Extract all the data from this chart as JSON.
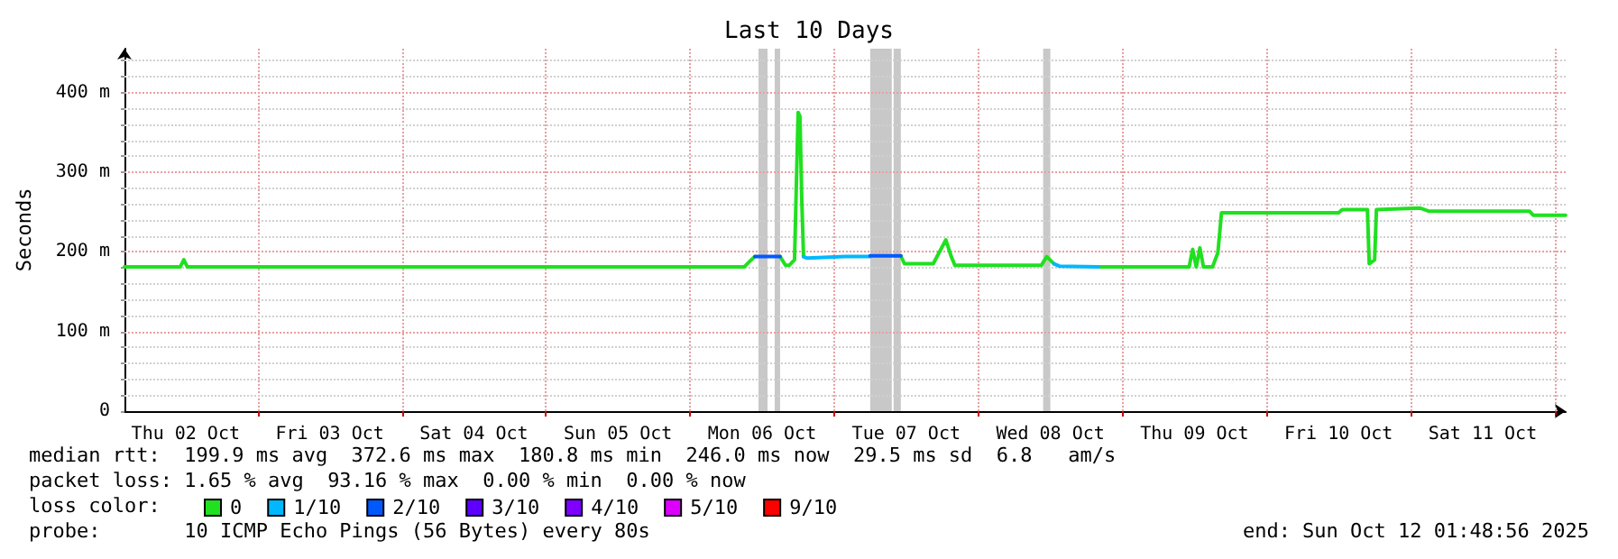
{
  "chart_data": {
    "type": "line",
    "title": "Last 10 Days",
    "ylabel": "Seconds",
    "xlim": [
      "2025-10-02T01:49",
      "2025-10-12T01:49"
    ],
    "xticks": [
      {
        "value": "2025-10-02T12:00",
        "label": "Thu 02 Oct"
      },
      {
        "value": "2025-10-03T00:00",
        "label": null
      },
      {
        "value": "2025-10-03T12:00",
        "label": "Fri 03 Oct"
      },
      {
        "value": "2025-10-04T00:00",
        "label": null
      },
      {
        "value": "2025-10-04T12:00",
        "label": "Sat 04 Oct"
      },
      {
        "value": "2025-10-05T00:00",
        "label": null
      },
      {
        "value": "2025-10-05T12:00",
        "label": "Sun 05 Oct"
      },
      {
        "value": "2025-10-06T00:00",
        "label": null
      },
      {
        "value": "2025-10-06T12:00",
        "label": "Mon 06 Oct"
      },
      {
        "value": "2025-10-07T00:00",
        "label": null
      },
      {
        "value": "2025-10-07T12:00",
        "label": "Tue 07 Oct"
      },
      {
        "value": "2025-10-08T00:00",
        "label": null
      },
      {
        "value": "2025-10-08T12:00",
        "label": "Wed 08 Oct"
      },
      {
        "value": "2025-10-09T00:00",
        "label": null
      },
      {
        "value": "2025-10-09T12:00",
        "label": "Thu 09 Oct"
      },
      {
        "value": "2025-10-10T00:00",
        "label": null
      },
      {
        "value": "2025-10-10T12:00",
        "label": "Fri 10 Oct"
      },
      {
        "value": "2025-10-11T00:00",
        "label": null
      },
      {
        "value": "2025-10-11T12:00",
        "label": "Sat 11 Oct"
      },
      {
        "value": "2025-10-12T00:00",
        "label": null
      }
    ],
    "ylim": [
      0,
      455
    ],
    "yticks": [
      {
        "value": 0,
        "label": "0"
      },
      {
        "value": 20,
        "label": null
      },
      {
        "value": 40,
        "label": null
      },
      {
        "value": 60,
        "label": null
      },
      {
        "value": 80,
        "label": null
      },
      {
        "value": 100,
        "label": "100 m"
      },
      {
        "value": 120,
        "label": null
      },
      {
        "value": 140,
        "label": null
      },
      {
        "value": 160,
        "label": null
      },
      {
        "value": 180,
        "label": null
      },
      {
        "value": 200,
        "label": "200 m"
      },
      {
        "value": 220,
        "label": null
      },
      {
        "value": 240,
        "label": null
      },
      {
        "value": 260,
        "label": null
      },
      {
        "value": 280,
        "label": null
      },
      {
        "value": 300,
        "label": "300 m"
      },
      {
        "value": 320,
        "label": null
      },
      {
        "value": 340,
        "label": null
      },
      {
        "value": 360,
        "label": null
      },
      {
        "value": 380,
        "label": null
      },
      {
        "value": 400,
        "label": "400 m"
      },
      {
        "value": 420,
        "label": null
      },
      {
        "value": 440,
        "label": null
      }
    ],
    "grid": true,
    "legend": "bottom left",
    "marker": "none",
    "line_style": "solid",
    "bands": [
      {
        "axis": "x",
        "from": "2025-10-06T11:24",
        "to": "2025-10-06T12:54",
        "color": "#c8c8c8"
      },
      {
        "axis": "x",
        "from": "2025-10-06T14:06",
        "to": "2025-10-06T15:00",
        "color": "#c8c8c8"
      },
      {
        "axis": "x",
        "from": "2025-10-07T06:00",
        "to": "2025-10-07T09:36",
        "color": "#c8c8c8"
      },
      {
        "axis": "x",
        "from": "2025-10-07T09:54",
        "to": "2025-10-07T11:06",
        "color": "#c8c8c8"
      },
      {
        "axis": "x",
        "from": "2025-10-08T10:48",
        "to": "2025-10-08T12:00",
        "color": "#c8c8c8"
      }
    ],
    "series": [
      {
        "name": "0",
        "color": "#20e020",
        "x": [
          "2025-10-02T01:49",
          "2025-10-02T11:06",
          "2025-10-02T11:42",
          "2025-10-02T12:18",
          "2025-10-06T09:00",
          "2025-10-06T10:12",
          "2025-10-06T10:48",
          "2025-10-06T12:00",
          "2025-10-06T15:00",
          "2025-10-06T15:54",
          "2025-10-06T16:30",
          "2025-10-06T17:24",
          "2025-10-06T18:00",
          "2025-10-06T18:18",
          "2025-10-06T18:36",
          "2025-10-06T18:54",
          "2025-10-06T21:00",
          "2025-10-07T11:06",
          "2025-10-07T11:42",
          "2025-10-07T16:30",
          "2025-10-07T18:36",
          "2025-10-07T19:30",
          "2025-10-07T20:06",
          "2025-10-08T10:30",
          "2025-10-08T11:24",
          "2025-10-08T12:36",
          "2025-10-08T16:00",
          "2025-10-08T20:00",
          "2025-10-09T06:00",
          "2025-10-09T11:06",
          "2025-10-09T11:42",
          "2025-10-09T12:18",
          "2025-10-09T12:54",
          "2025-10-09T13:30",
          "2025-10-09T15:00",
          "2025-10-09T15:54",
          "2025-10-09T16:30",
          "2025-10-10T12:00",
          "2025-10-10T12:36",
          "2025-10-10T16:48",
          "2025-10-10T17:06",
          "2025-10-10T18:00",
          "2025-10-10T18:18",
          "2025-10-11T01:30",
          "2025-10-11T03:00",
          "2025-10-11T19:48",
          "2025-10-11T20:24",
          "2025-10-12T01:48"
        ],
        "values": [
          181,
          181,
          190,
          181,
          181,
          190,
          194,
          null,
          194,
          183,
          183,
          190,
          375,
          370,
          267,
          194,
          null,
          195,
          185,
          185,
          215,
          194,
          183,
          183,
          194,
          185,
          null,
          181,
          181,
          181,
          203,
          181,
          205,
          181,
          181,
          199,
          249,
          249,
          253,
          253,
          185,
          190,
          253,
          255,
          251,
          251,
          246,
          246
        ]
      },
      {
        "name": "1/10",
        "color": "#00b8ff",
        "x": [
          "2025-10-06T18:54",
          "2025-10-06T19:30",
          "2025-10-07T01:48",
          "2025-10-07T06:00",
          "2025-10-07T06:30",
          "2025-10-08T12:36",
          "2025-10-08T13:30",
          "2025-10-08T20:00"
        ],
        "values": [
          194,
          192,
          194,
          194,
          null,
          185,
          182,
          181
        ]
      },
      {
        "name": "2/10",
        "color": "#0059ff",
        "x": [
          "2025-10-06T10:48",
          "2025-10-06T15:00"
        ],
        "values": [
          194,
          194
        ]
      },
      {
        "name": "3/10",
        "color": "#5e00ff"
      },
      {
        "name": "4/10",
        "color": "#7e00ff"
      },
      {
        "name": "5/10",
        "color": "#dd00ff"
      },
      {
        "name": "9/10",
        "color": "#ff0000"
      },
      {
        "color": "#0059ff",
        "x": [
          "2025-10-07T06:00",
          "2025-10-07T09:00",
          "2025-10-07T11:06"
        ],
        "values": [
          195,
          195,
          195
        ]
      }
    ],
    "annotations": [
      "median rtt:  199.9 ms avg  372.6 ms max  180.8 ms min  246.0 ms now  29.5 ms sd  6.8   am/s",
      "packet loss: 1.65 % avg  93.16 % max  0.00 % min  0.00 % now",
      "loss color:",
      "probe:       10 ICMP Echo Pings (56 Bytes) every 80s",
      "end: Sun Oct 12 01:48:56 2025"
    ]
  }
}
